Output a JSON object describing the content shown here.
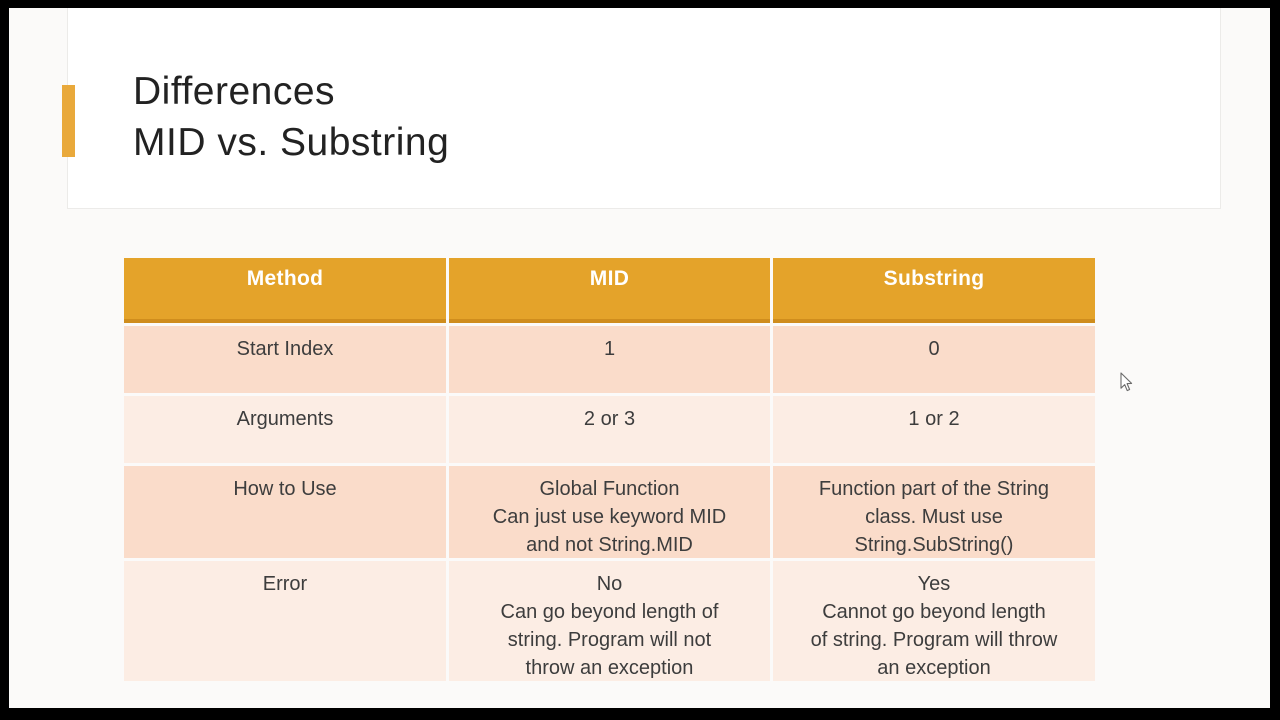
{
  "title": {
    "line1": "Differences",
    "line2": "MID vs. Substring"
  },
  "colors": {
    "accent": "#e9a93b",
    "header_bg": "#e4a32a",
    "header_border": "#cf8d1d",
    "row_dark": "#fadcca",
    "row_light": "#fcede4",
    "header_text": "#ffffff",
    "body_text": "#3d3d3d"
  },
  "table": {
    "headers": [
      "Method",
      "MID",
      "Substring"
    ],
    "rows": [
      {
        "label": "Start Index",
        "shade": "dark",
        "mid": [
          "1"
        ],
        "substring": [
          "0"
        ]
      },
      {
        "label": "Arguments",
        "shade": "light",
        "mid": [
          "2 or 3"
        ],
        "substring": [
          "1 or 2"
        ]
      },
      {
        "label": "How to Use",
        "shade": "dark",
        "mid": [
          "Global Function",
          "Can just use keyword MID",
          "and not String.MID"
        ],
        "substring": [
          "Function part of the String",
          "class. Must use",
          "String.SubString()"
        ]
      },
      {
        "label": "Error",
        "shade": "light",
        "mid": [
          "No",
          "Can go beyond length of",
          "string. Program will not",
          "throw an exception"
        ],
        "substring": [
          "Yes",
          "Cannot go beyond length",
          "of string. Program will throw",
          "an exception"
        ]
      }
    ]
  },
  "cursor": "arrow-pointer"
}
